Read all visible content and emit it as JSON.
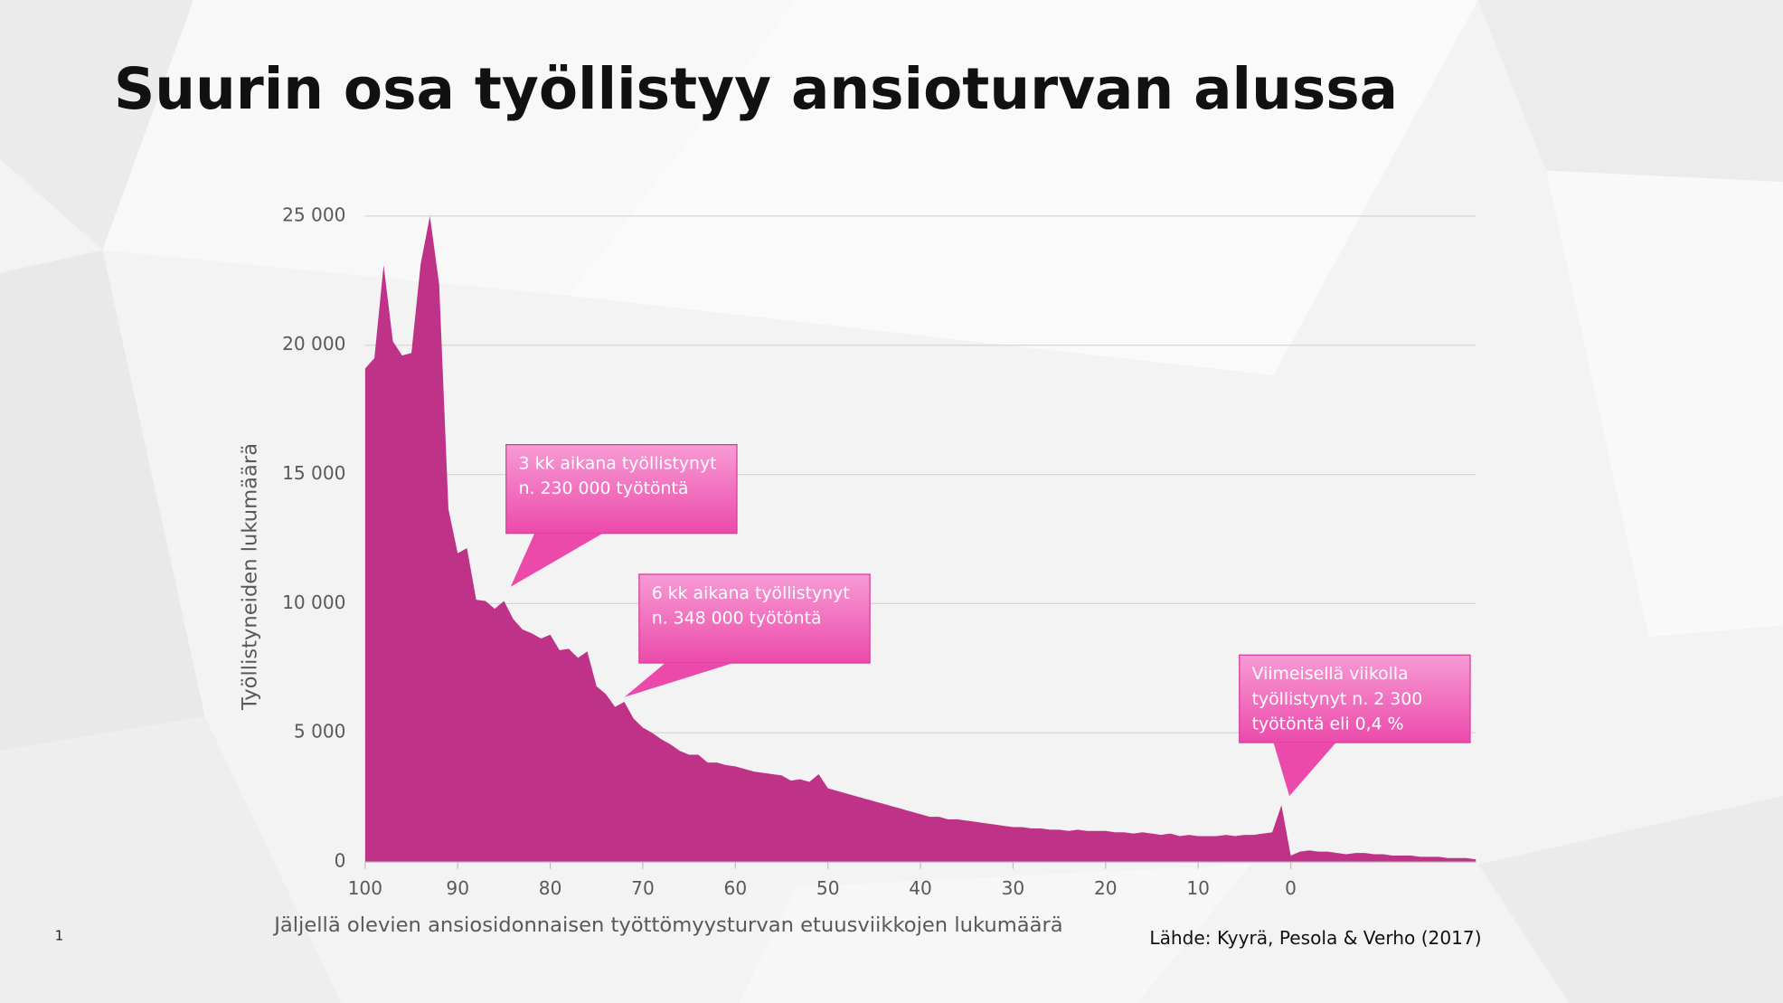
{
  "slide_number": "1",
  "chart_data": {
    "type": "area",
    "title": "Suurin osa työllistyy ansioturvan alussa",
    "y_label": "Työllistyneiden lukumäärä",
    "x_label": "Jäljellä olevien ansiosidonnaisen työttömyysturvan etuusviikkojen lukumäärä",
    "source": "Lähde: Kyyrä, Pesola & Verho (2017)",
    "color": "#be3287",
    "grid": true,
    "xlim": [
      100,
      -20
    ],
    "ylim": [
      0,
      25000
    ],
    "xticks": [
      100,
      90,
      80,
      70,
      60,
      50,
      40,
      30,
      20,
      10,
      0
    ],
    "yticks": [
      0,
      {
        "value": 5000,
        "label": "5 000"
      },
      {
        "value": 10000,
        "label": "10 000"
      },
      {
        "value": 15000,
        "label": "15 000"
      },
      {
        "value": 20000,
        "label": "20 000"
      },
      {
        "value": 25000,
        "label": "25 000"
      }
    ],
    "x": [
      100,
      99,
      98,
      97,
      96,
      95,
      94,
      93,
      92,
      91,
      90,
      89,
      88,
      87,
      86,
      85,
      84,
      83,
      82,
      81,
      80,
      79,
      78,
      77,
      76,
      75,
      74,
      73,
      72,
      71,
      70,
      69,
      68,
      67,
      66,
      65,
      64,
      63,
      62,
      61,
      60,
      59,
      58,
      57,
      56,
      55,
      54,
      53,
      52,
      51,
      50,
      49,
      48,
      47,
      46,
      45,
      44,
      43,
      42,
      41,
      40,
      39,
      38,
      37,
      36,
      35,
      34,
      33,
      32,
      31,
      30,
      29,
      28,
      27,
      26,
      25,
      24,
      23,
      22,
      21,
      20,
      19,
      18,
      17,
      16,
      15,
      14,
      13,
      12,
      11,
      10,
      9,
      8,
      7,
      6,
      5,
      4,
      3,
      2,
      1,
      0,
      -1,
      -2,
      -3,
      -4,
      -5,
      -6,
      -7,
      -8,
      -9,
      -10,
      -11,
      -12,
      -13,
      -14,
      -15,
      -16,
      -17,
      -18,
      -19,
      -20
    ],
    "values": [
      19100,
      19500,
      23100,
      20150,
      19600,
      19700,
      23150,
      25000,
      22350,
      13650,
      11950,
      12150,
      10150,
      10100,
      9800,
      10100,
      9400,
      9000,
      8850,
      8650,
      8800,
      8200,
      8250,
      7900,
      8150,
      6800,
      6500,
      6000,
      6200,
      5550,
      5200,
      5000,
      4750,
      4550,
      4300,
      4150,
      4150,
      3850,
      3850,
      3750,
      3700,
      3600,
      3500,
      3450,
      3400,
      3350,
      3150,
      3200,
      3100,
      3400,
      2850,
      2750,
      2650,
      2550,
      2450,
      2350,
      2250,
      2150,
      2050,
      1950,
      1850,
      1750,
      1750,
      1650,
      1650,
      1600,
      1550,
      1500,
      1450,
      1400,
      1350,
      1350,
      1300,
      1300,
      1250,
      1250,
      1200,
      1250,
      1200,
      1200,
      1200,
      1150,
      1150,
      1100,
      1150,
      1100,
      1050,
      1100,
      1000,
      1050,
      1000,
      1000,
      1000,
      1050,
      1000,
      1050,
      1050,
      1100,
      1150,
      2200,
      250,
      400,
      450,
      400,
      400,
      350,
      300,
      350,
      350,
      300,
      300,
      250,
      250,
      250,
      200,
      200,
      200,
      150,
      150,
      150,
      100
    ],
    "annotations": [
      {
        "lines": [
          "3 kk aikana työllistynyt",
          "n. 230 000 työtöntä"
        ]
      },
      {
        "lines": [
          "6 kk aikana työllistynyt",
          "n. 348 000 työtöntä"
        ]
      },
      {
        "lines": [
          "Viimeisellä viikolla",
          "työllistynyt n. 2 300",
          "työtöntä eli 0,4 %"
        ]
      }
    ]
  }
}
